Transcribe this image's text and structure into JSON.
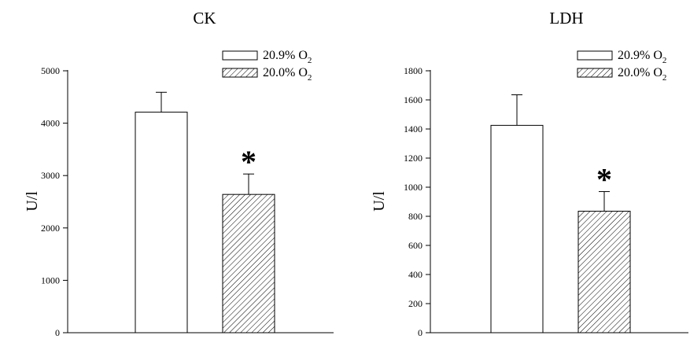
{
  "chart_data": [
    {
      "type": "bar",
      "title": "CK",
      "xlabel": "",
      "ylabel": "U/l",
      "ylim": [
        0,
        5000
      ],
      "yticks": [
        0,
        1000,
        2000,
        3000,
        4000,
        5000
      ],
      "grid": false,
      "legend_position": "top-right",
      "series": [
        {
          "name": "20.9% O",
          "name_sub": "2",
          "value": 4210,
          "error": 380,
          "pattern": "none",
          "annotation": ""
        },
        {
          "name": "20.0% O",
          "name_sub": "2",
          "value": 2640,
          "error": 390,
          "pattern": "hatch",
          "annotation": "*"
        }
      ]
    },
    {
      "type": "bar",
      "title": "LDH",
      "xlabel": "",
      "ylabel": "U/l",
      "ylim": [
        0,
        1800
      ],
      "yticks": [
        0,
        200,
        400,
        600,
        800,
        1000,
        1200,
        1400,
        1600,
        1800
      ],
      "grid": false,
      "legend_position": "top-right",
      "series": [
        {
          "name": "20.9% O",
          "name_sub": "2",
          "value": 1425,
          "error": 210,
          "pattern": "none",
          "annotation": ""
        },
        {
          "name": "20.0% O",
          "name_sub": "2",
          "value": 835,
          "error": 135,
          "pattern": "hatch",
          "annotation": "*"
        }
      ]
    }
  ]
}
